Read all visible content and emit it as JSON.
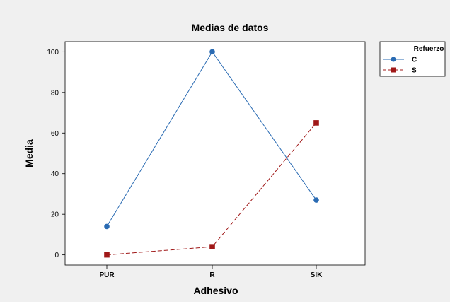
{
  "chart_data": {
    "type": "line",
    "title": "Medias de datos",
    "xlabel": "Adhesivo",
    "ylabel": "Media",
    "categories": [
      "PUR",
      "R",
      "SIK"
    ],
    "ylim": [
      -5,
      105
    ],
    "yticks": [
      0,
      20,
      40,
      60,
      80,
      100
    ],
    "grid": false,
    "legend": {
      "title": "Refuerzo",
      "placement": "right"
    },
    "series": [
      {
        "name": "C",
        "values": [
          14,
          100,
          27
        ],
        "color": "#2a6bb3",
        "marker": "circle",
        "line": "solid"
      },
      {
        "name": "S",
        "values": [
          0,
          4,
          65
        ],
        "color": "#a01818",
        "marker": "square",
        "line": "dashed"
      }
    ]
  },
  "colors": {
    "figure_background": "#f0f0f0",
    "plot_background": "#ffffff"
  }
}
